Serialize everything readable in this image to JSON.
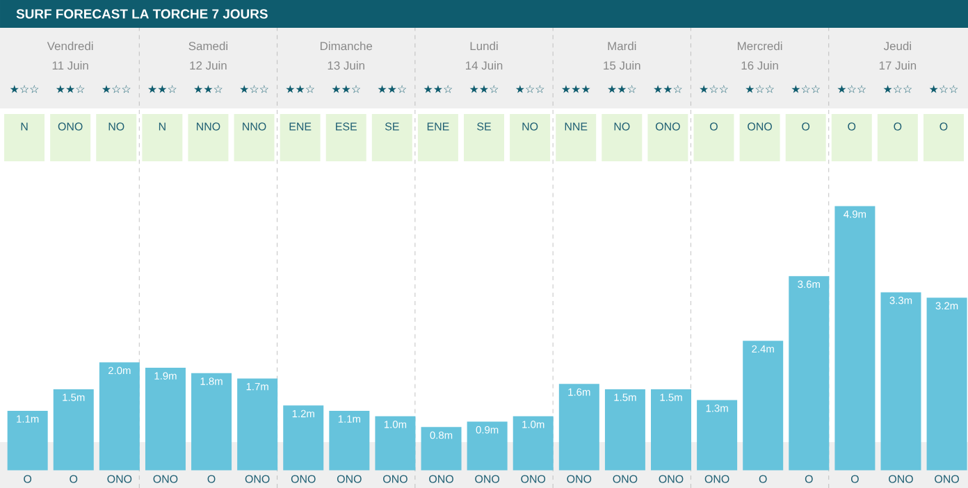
{
  "chart_data": {
    "type": "bar",
    "title": "SURF FORECAST LA TORCHE 7 JOURS",
    "color": "#66c3dc",
    "categories": [
      "O",
      "O",
      "ONO",
      "ONO",
      "O",
      "ONO",
      "ONO",
      "ONO",
      "ONO",
      "ONO",
      "ONO",
      "ONO",
      "ONO",
      "ONO",
      "ONO",
      "ONO",
      "O",
      "O",
      "O",
      "ONO",
      "ONO"
    ],
    "values": [
      1.1,
      1.5,
      2.0,
      1.9,
      1.8,
      1.7,
      1.2,
      1.1,
      1.0,
      0.8,
      0.9,
      1.0,
      1.6,
      1.5,
      1.5,
      1.3,
      2.4,
      3.6,
      4.9,
      3.3,
      3.2
    ],
    "value_labels": [
      "1.1m",
      "1.5m",
      "2.0m",
      "1.9m",
      "1.8m",
      "1.7m",
      "1.2m",
      "1.1m",
      "1.0m",
      "0.8m",
      "0.9m",
      "1.0m",
      "1.6m",
      "1.5m",
      "1.5m",
      "1.3m",
      "2.4m",
      "3.6m",
      "4.9m",
      "3.3m",
      "3.2m"
    ],
    "annotations": [
      "Vendredi",
      "11 Juin",
      "Samedi",
      "12 Juin",
      "Dimanche",
      "13 Juin",
      "Lundi",
      "14 Juin",
      "Mardi",
      "15 Juin",
      "Mercredi",
      "16 Juin",
      "Jeudi",
      "17 Juin",
      "★☆☆",
      "★★☆",
      "★☆☆",
      "★★☆",
      "★★☆",
      "★☆☆",
      "★★☆",
      "★★☆",
      "★★☆",
      "★★☆",
      "★★☆",
      "★☆☆",
      "★★★",
      "★★☆",
      "★★☆",
      "★☆☆",
      "★☆☆",
      "★☆☆",
      "★☆☆",
      "★☆☆",
      "★☆☆",
      "N",
      "ONO",
      "NO",
      "N",
      "NNO",
      "NNO",
      "ENE",
      "ESE",
      "SE",
      "ENE",
      "SE",
      "NO",
      "NNE",
      "NO",
      "ONO",
      "O",
      "ONO",
      "O",
      "O",
      "O",
      "O"
    ]
  }
}
